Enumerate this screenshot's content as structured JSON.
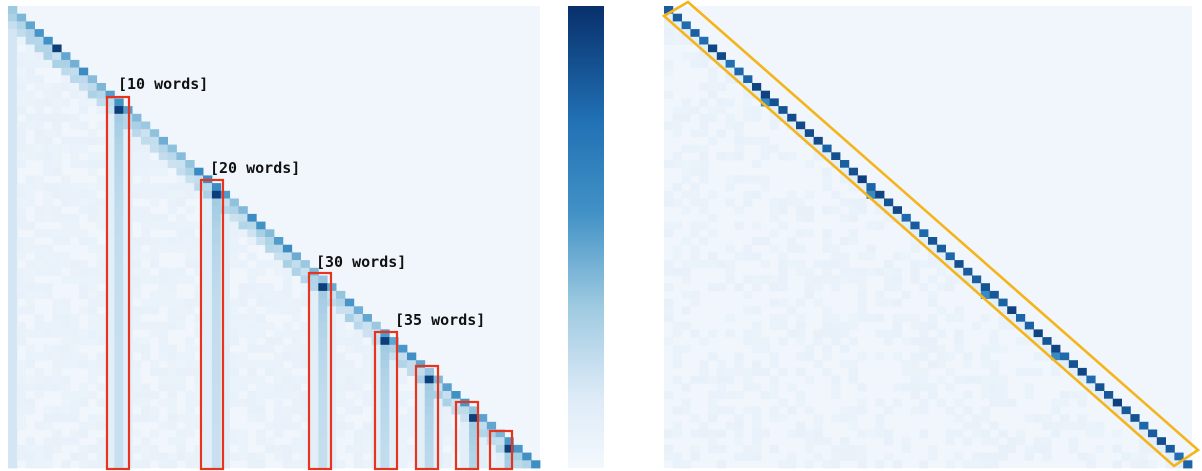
{
  "colors": {
    "cmap_low": "#f3f8fd",
    "cmap_high": "#08306b",
    "box_highlight_left": "#e8341c",
    "box_highlight_right": "#f4b41a",
    "label_text": "#111111"
  },
  "annotations": {
    "boxes": [
      {
        "label": "[10 words]"
      },
      {
        "label": "[20 words]"
      },
      {
        "label": "[30 words]"
      },
      {
        "label": "[35 words]"
      }
    ]
  },
  "chart_data": [
    {
      "type": "heatmap",
      "title": "",
      "xlabel": "",
      "ylabel": "",
      "grid": false,
      "n_rows": 60,
      "n_cols": 60,
      "value_range": [
        0,
        1
      ],
      "pattern": "causal attention: diagonal with strong vertical column stripes at summary tokens",
      "highlight_columns": [
        12,
        23,
        35,
        42,
        47,
        52,
        56
      ],
      "highlight_label_columns": {
        "12": "[10 words]",
        "23": "[20 words]",
        "35": "[30 words]",
        "42": "[35 words]"
      }
    },
    {
      "type": "heatmap",
      "title": "",
      "xlabel": "",
      "ylabel": "",
      "grid": false,
      "n_rows": 60,
      "n_cols": 60,
      "value_range": [
        0,
        1
      ],
      "pattern": "strong diagonal, highlighted along diagonal band"
    }
  ],
  "colorbar": {
    "orientation": "vertical",
    "range": [
      0,
      1
    ]
  }
}
